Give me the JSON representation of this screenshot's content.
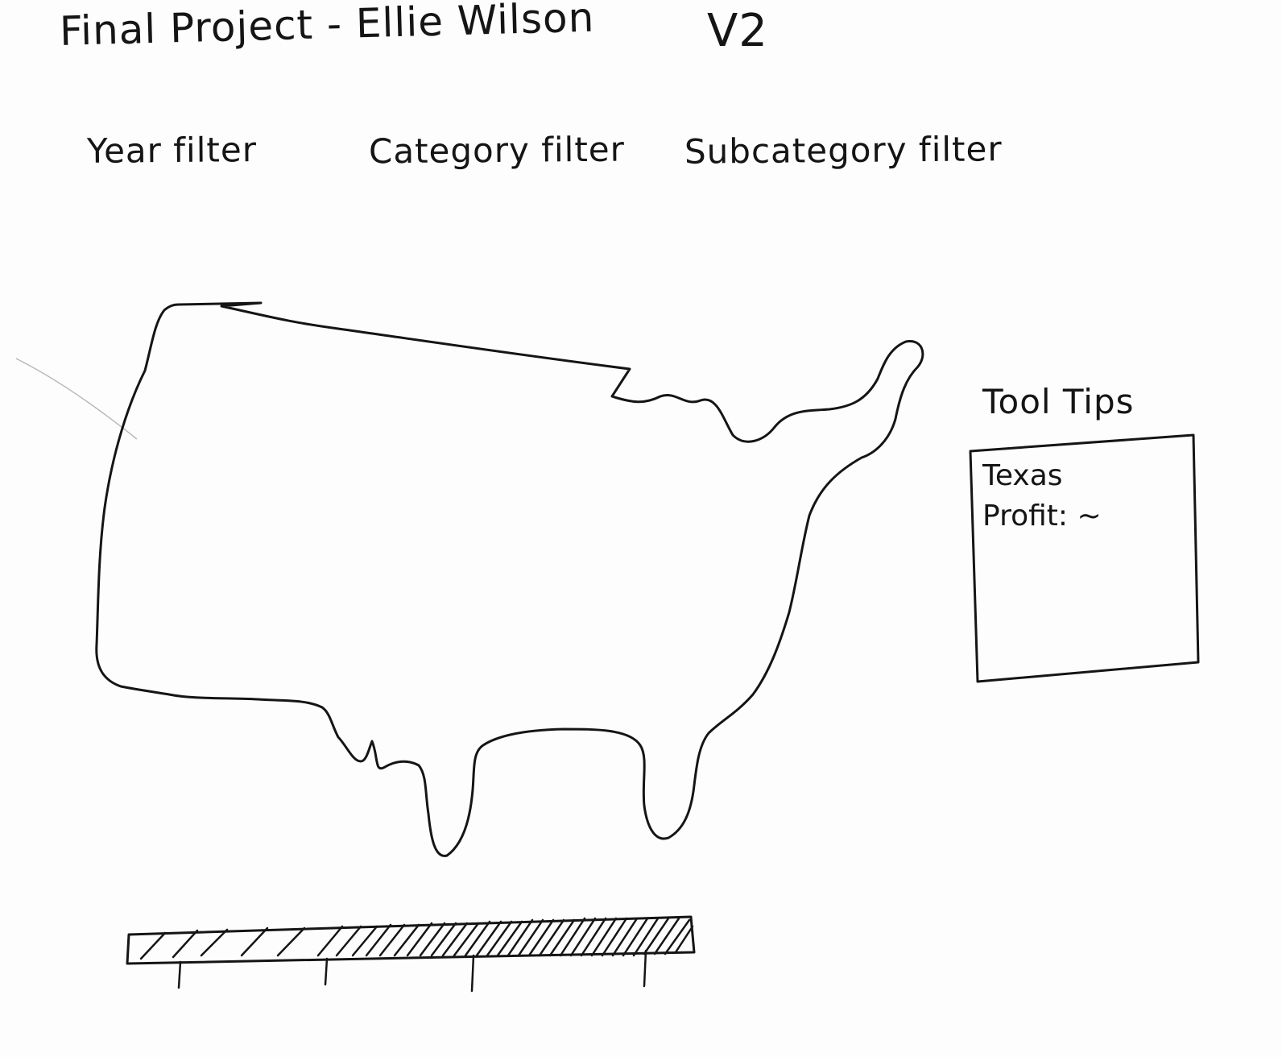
{
  "page": {
    "title": "Final Project - Ellie Wilson",
    "version": "V2"
  },
  "filters": [
    {
      "label": "Year filter"
    },
    {
      "label": "Category filter"
    },
    {
      "label": "Subcategory filter"
    }
  ],
  "tooltip": {
    "heading": "Tool Tips",
    "state": "Texas",
    "profit_label": "Profit: ~"
  },
  "colors": {
    "ink": "#151515",
    "paper": "#fdfdfd"
  }
}
